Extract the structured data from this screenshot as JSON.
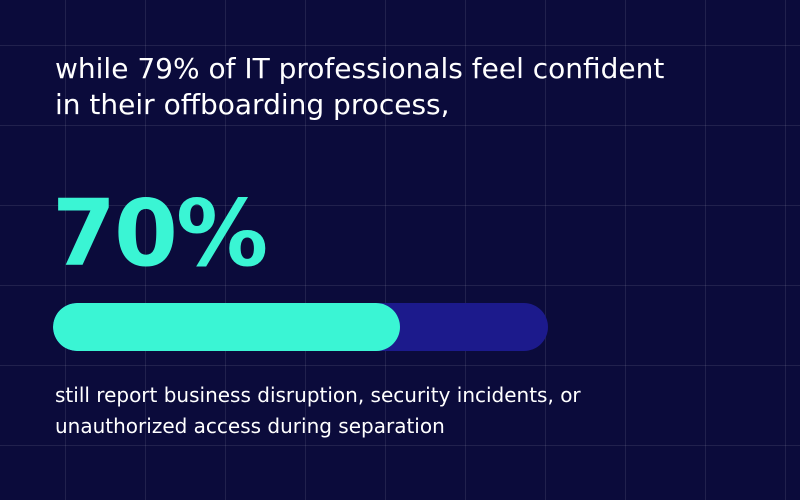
{
  "heading": [
    "while 79% of IT professionals feel confident",
    "in their offboarding process,"
  ],
  "stat": {
    "value": 70,
    "label": "70%"
  },
  "footer": [
    "still report business disruption, security incidents, or",
    "unauthorized access during separation"
  ]
}
